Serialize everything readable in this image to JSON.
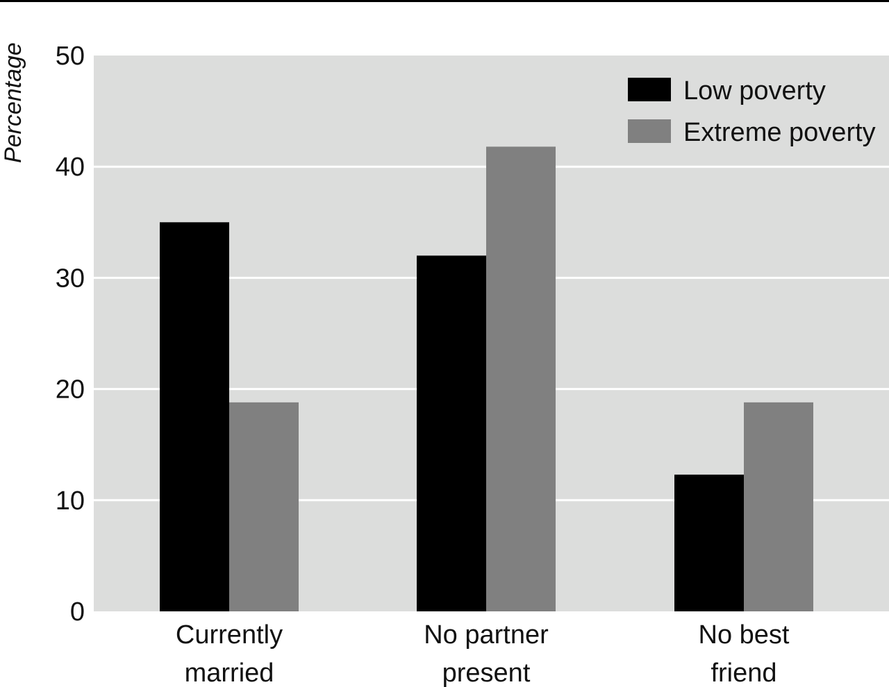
{
  "chart_data": {
    "type": "bar",
    "title": "",
    "xlabel": "",
    "ylabel": "Percentage",
    "ylim": [
      0,
      50
    ],
    "yticks": [
      0,
      10,
      20,
      30,
      40,
      50
    ],
    "categories": [
      [
        "Currently",
        "married"
      ],
      [
        "No partner",
        "present"
      ],
      [
        "No best",
        "friend"
      ]
    ],
    "series": [
      {
        "name": "Low poverty",
        "color": "#000000",
        "values": [
          35,
          32,
          12.3
        ]
      },
      {
        "name": "Extreme poverty",
        "color": "#808080",
        "values": [
          18.8,
          41.8,
          18.8
        ]
      }
    ],
    "grid": true,
    "legend": "top-right",
    "colors": {
      "plot_background": "#dcdddc",
      "gridline": "#ffffff",
      "top_rule": "#000000"
    }
  }
}
